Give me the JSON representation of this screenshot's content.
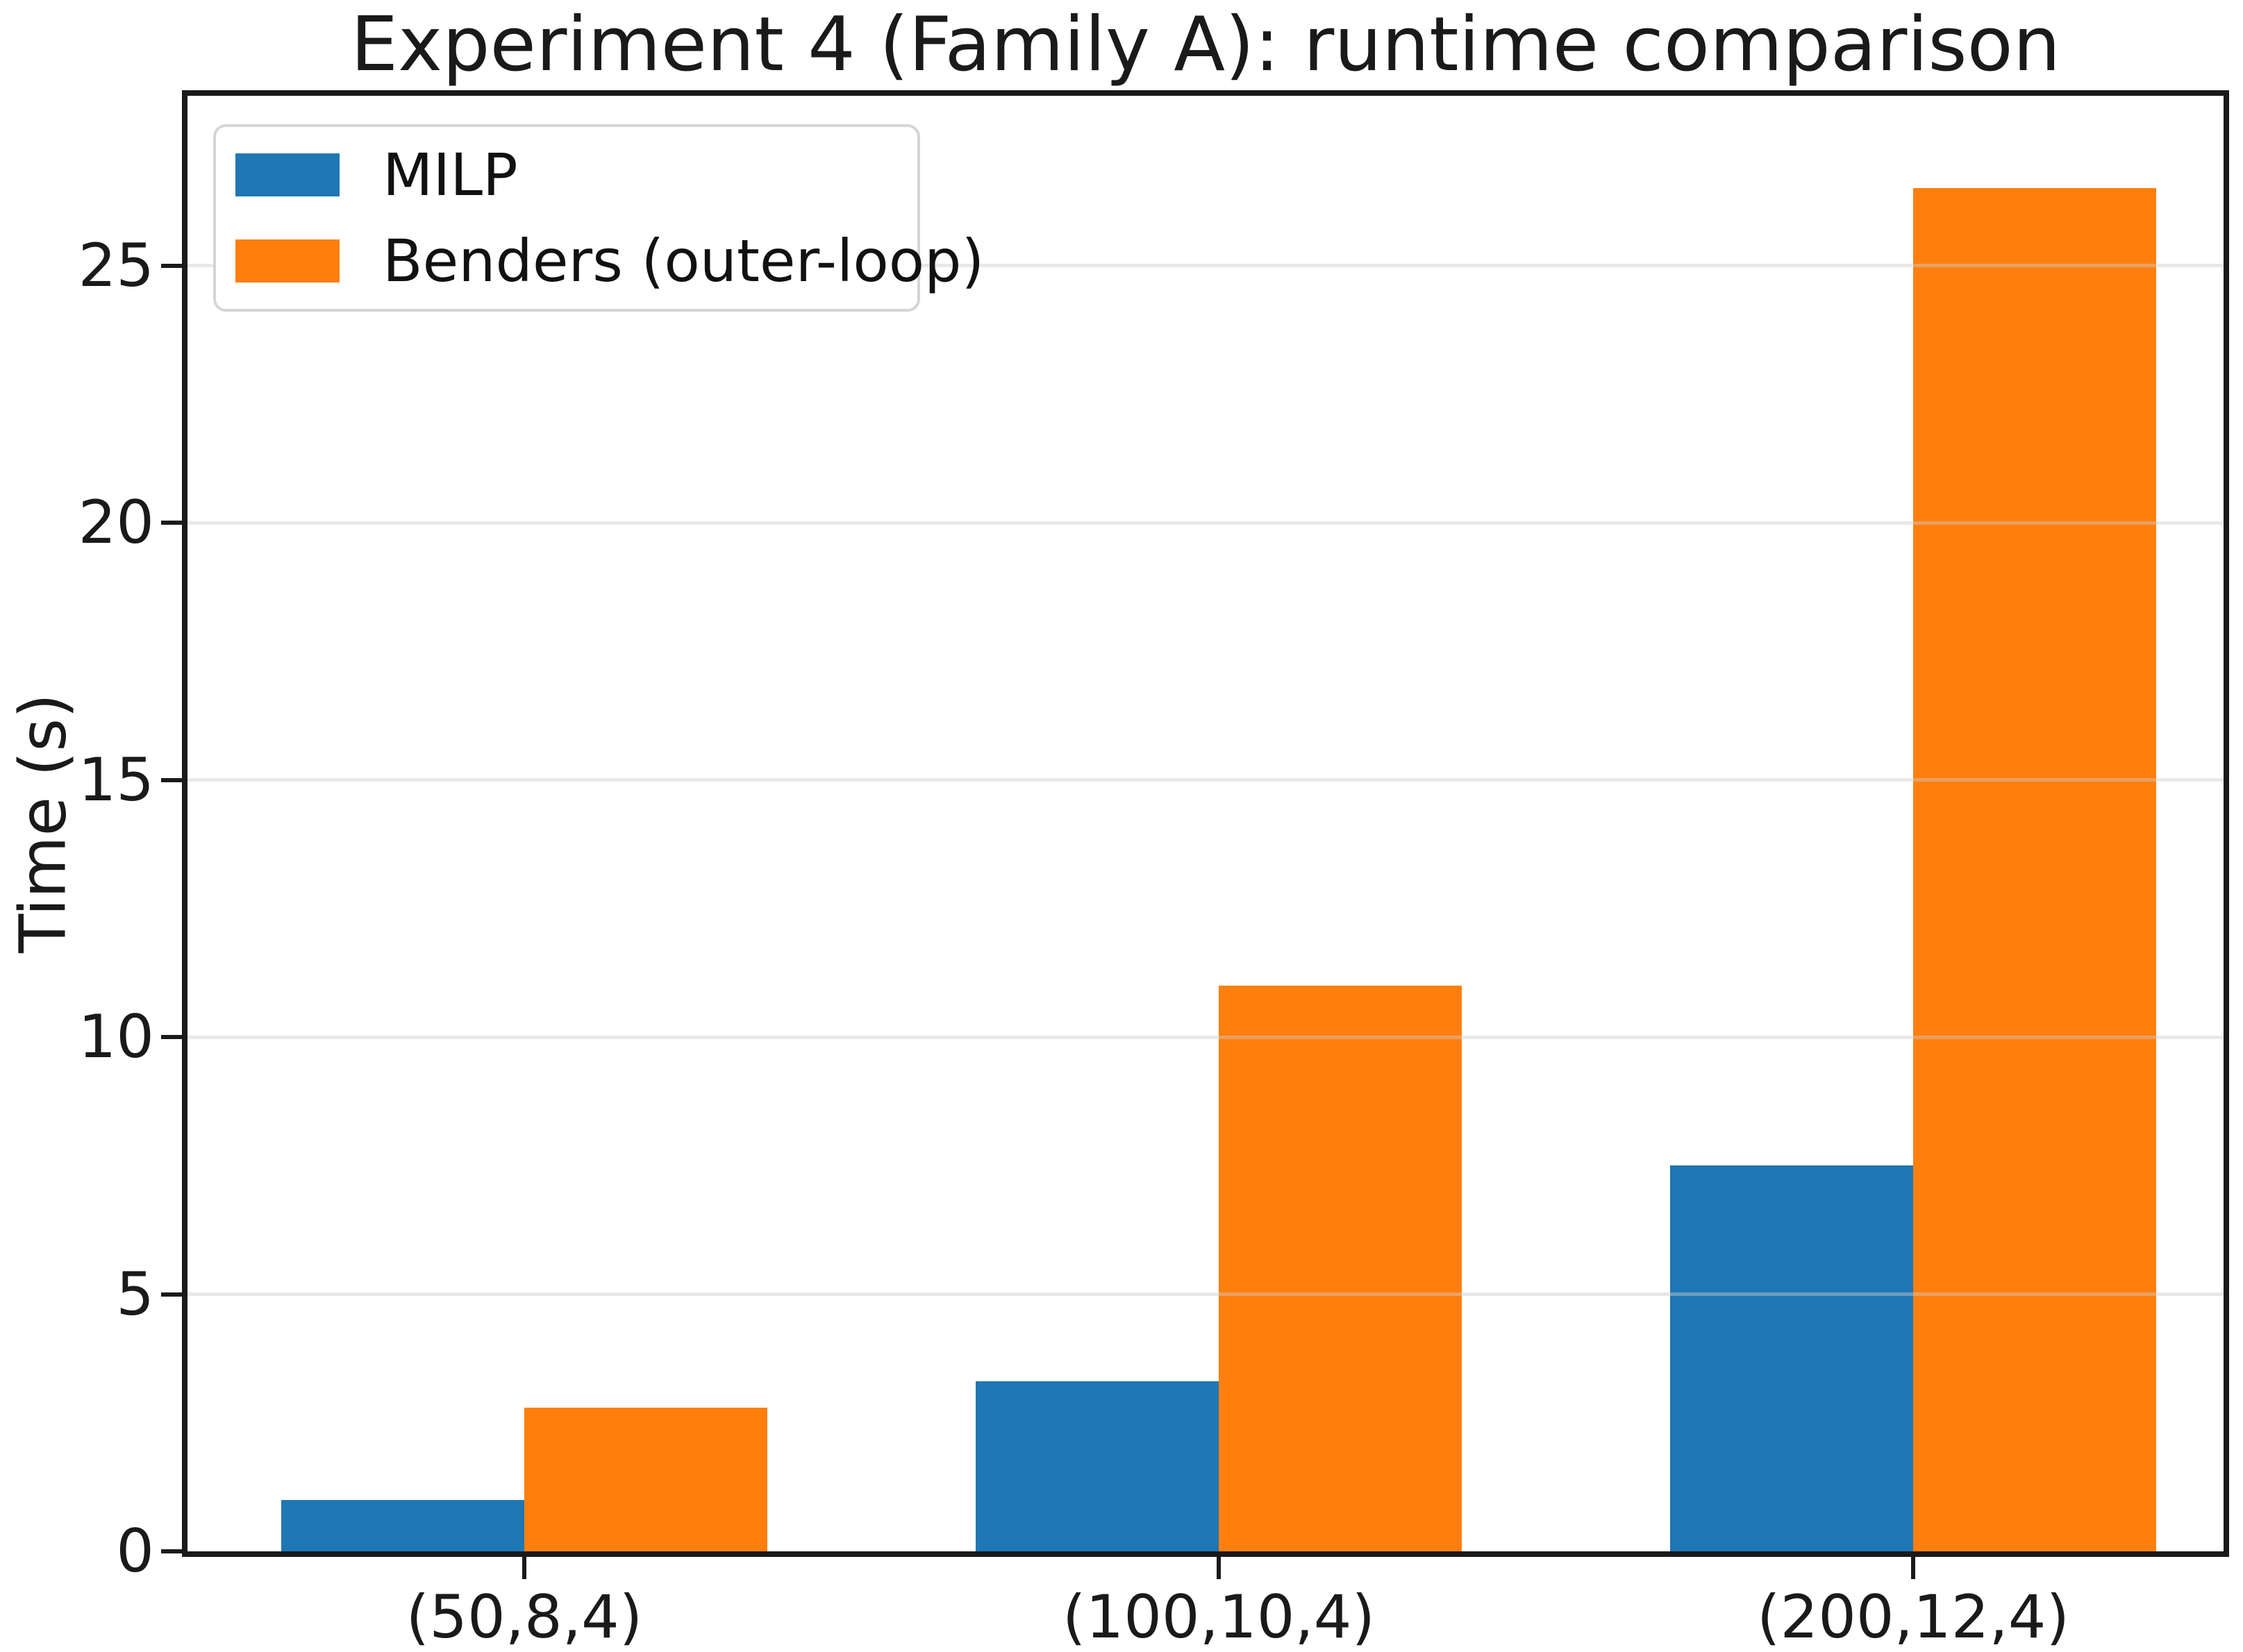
{
  "chart_data": {
    "type": "bar",
    "title": "Experiment 4 (Family A): runtime comparison",
    "xlabel": "",
    "ylabel": "Time (s)",
    "categories": [
      "(50,8,4)",
      "(100,10,4)",
      "(200,12,4)"
    ],
    "series": [
      {
        "name": "MILP",
        "color": "#1f77b4",
        "values": [
          1.0,
          3.3,
          7.5
        ]
      },
      {
        "name": "Benders (outer-loop)",
        "color": "#ff7f0e",
        "values": [
          2.8,
          11.0,
          26.5
        ]
      }
    ],
    "yticks": [
      0,
      5,
      10,
      15,
      20,
      25
    ],
    "ylim": [
      0,
      28.3
    ],
    "grid": true,
    "grid_on_top_of_bars": true,
    "legend_position": "upper left",
    "bar_width_fraction": 0.35,
    "frame_color": "#1a1a1a",
    "text_color": "#1a1a1a"
  }
}
